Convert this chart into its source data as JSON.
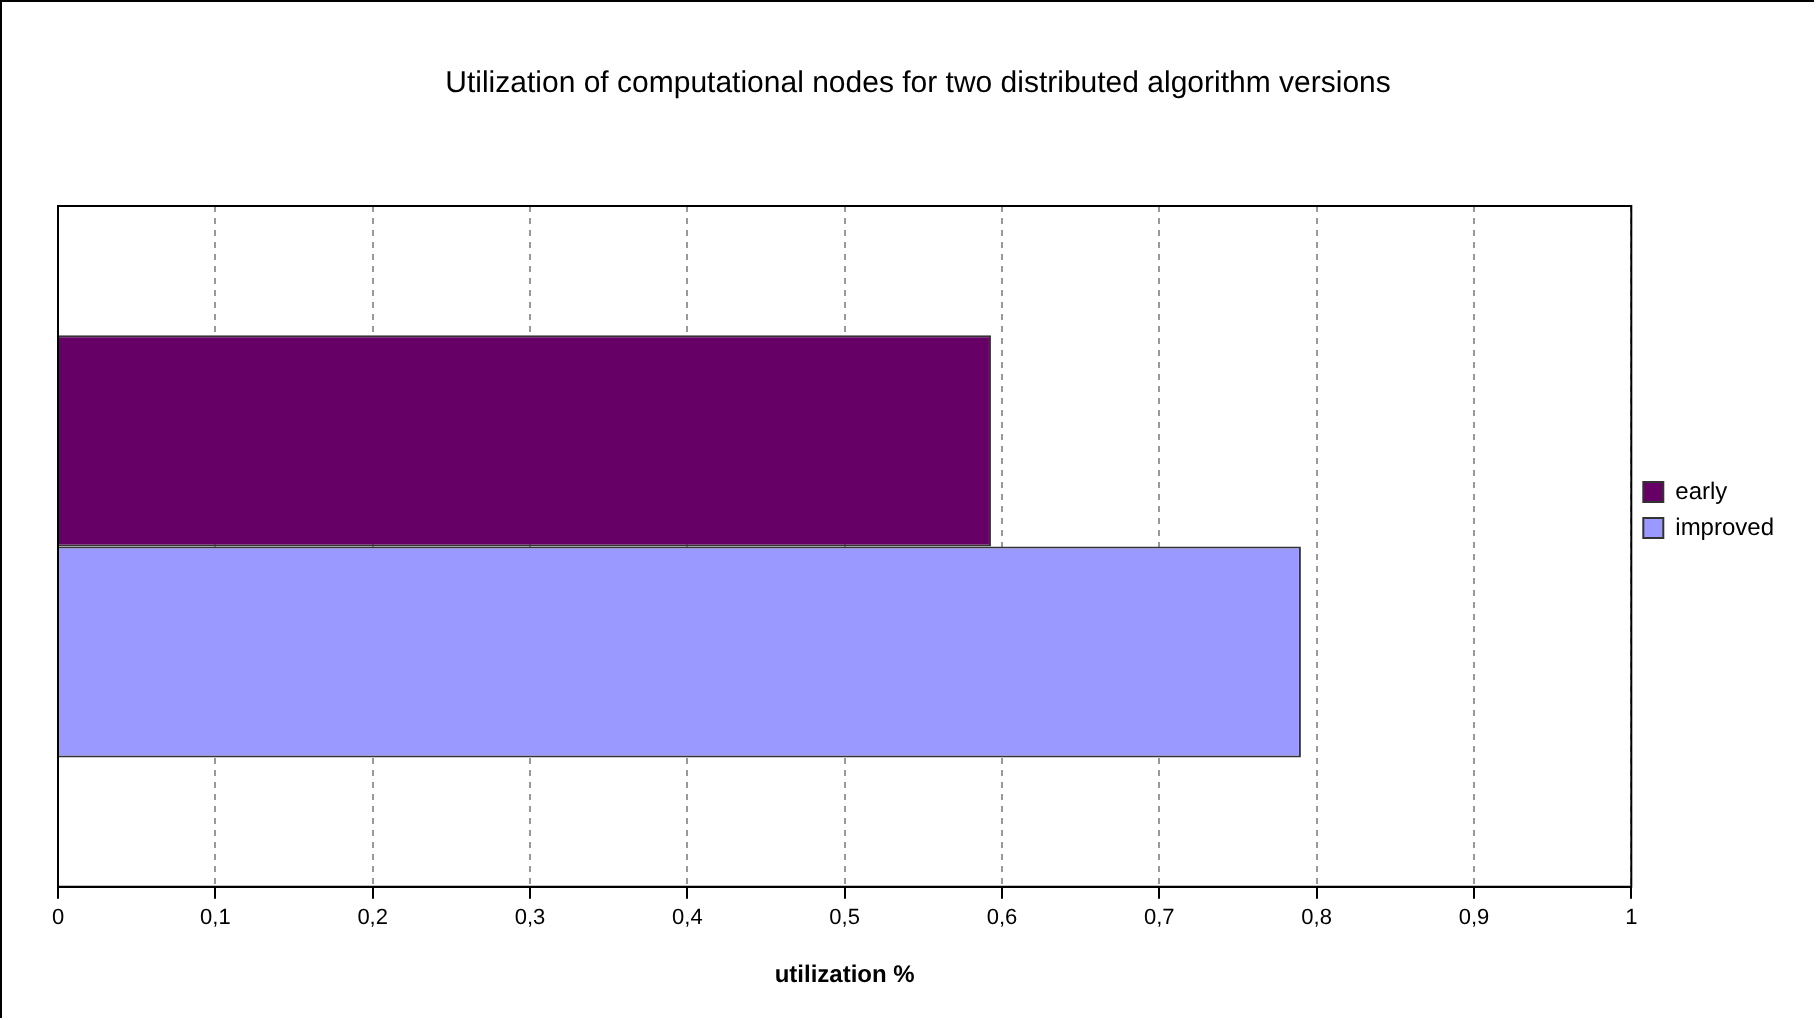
{
  "chart_data": {
    "type": "bar",
    "orientation": "horizontal",
    "title": "Utilization of computational nodes for two distributed algorithm versions",
    "xlabel": "utilization %",
    "categories": [
      null
    ],
    "series": [
      {
        "name": "early",
        "color": "#660066",
        "values": [
          0.593
        ]
      },
      {
        "name": "improved",
        "color": "#9999ff",
        "values": [
          0.79
        ]
      }
    ],
    "xlim": [
      0,
      1
    ],
    "xticks": [
      0,
      {
        "value": 0.1,
        "label": "0,1"
      },
      {
        "value": 0.2,
        "label": "0,2"
      },
      {
        "value": 0.3,
        "label": "0,3"
      },
      {
        "value": 0.4,
        "label": "0,4"
      },
      {
        "value": 0.5,
        "label": "0,5"
      },
      {
        "value": 0.6,
        "label": "0,6"
      },
      {
        "value": 0.7,
        "label": "0,7"
      },
      {
        "value": 0.8,
        "label": "0,8"
      },
      {
        "value": 0.9,
        "label": "0,9"
      },
      1
    ],
    "grid": "x",
    "legend": "right"
  }
}
